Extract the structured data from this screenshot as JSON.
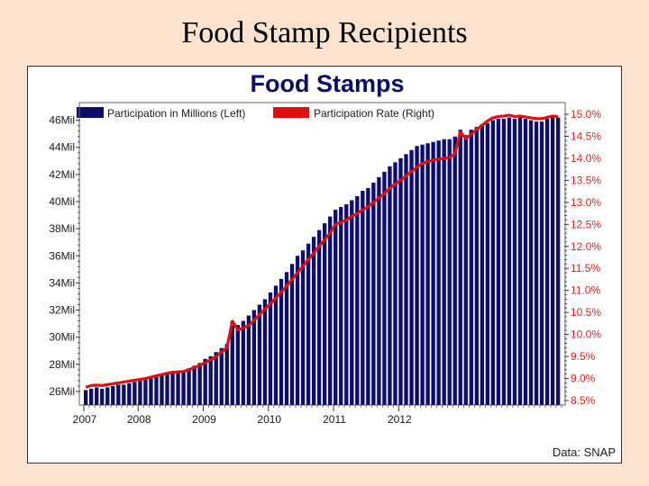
{
  "slide": {
    "title": "Food Stamp Recipients"
  },
  "colors": {
    "background": "#fbe3cf",
    "bars": "#0d0d6b",
    "rate_line": "#e01010",
    "right_axis": "#d22222"
  },
  "chart_data": {
    "type": "bar",
    "title": "Food Stamps",
    "source": "Data: SNAP",
    "legend": [
      "Participation in Millions (Left)",
      "Participation Rate (Right)"
    ],
    "legend_position": "top",
    "x_ticks": [
      "2007",
      "2008",
      "2009",
      "2010",
      "2011",
      "2012"
    ],
    "left_axis": {
      "ticks": [
        "26Mil",
        "28Mil",
        "30Mil",
        "32Mil",
        "34Mil",
        "36Mil",
        "38Mil",
        "40Mil",
        "42Mil",
        "44Mil",
        "46Mil"
      ],
      "range": [
        25,
        47.3
      ]
    },
    "right_axis": {
      "ticks": [
        "8.5%",
        "9.0%",
        "9.5%",
        "10.0%",
        "10.5%",
        "11.0%",
        "11.5%",
        "12.0%",
        "12.5%",
        "13.0%",
        "13.5%",
        "14.0%",
        "14.5%",
        "15.0%"
      ],
      "range": [
        8.5,
        15.0
      ]
    },
    "series": [
      {
        "name": "Participation in Millions (Left)",
        "type": "bar",
        "values": [
          26.1,
          26.2,
          26.3,
          26.2,
          26.3,
          26.4,
          26.5,
          26.5,
          26.6,
          26.7,
          26.8,
          26.9,
          27.0,
          27.1,
          27.3,
          27.4,
          27.5,
          27.5,
          27.5,
          27.7,
          27.9,
          28.1,
          28.4,
          28.6,
          28.9,
          29.2,
          29.5,
          31.2,
          30.9,
          31.2,
          31.6,
          32.0,
          32.4,
          32.8,
          33.3,
          33.8,
          34.3,
          34.8,
          35.4,
          36.0,
          36.4,
          36.9,
          37.4,
          37.9,
          38.4,
          38.9,
          39.4,
          39.6,
          39.8,
          40.1,
          40.4,
          40.8,
          41.0,
          41.4,
          41.8,
          42.2,
          42.6,
          42.9,
          43.2,
          43.5,
          43.8,
          44.1,
          44.2,
          44.3,
          44.4,
          44.5,
          44.6,
          44.6,
          44.8,
          45.3,
          44.9,
          45.3,
          45.5,
          45.7,
          45.8,
          46.0,
          46.1,
          46.1,
          46.2,
          46.1,
          46.2,
          46.1,
          46.0,
          45.9,
          45.9,
          46.1,
          46.3,
          46.2
        ]
      },
      {
        "name": "Participation Rate (Right)",
        "type": "line",
        "values": [
          8.8,
          8.84,
          8.85,
          8.84,
          8.86,
          8.88,
          8.9,
          8.92,
          8.94,
          8.96,
          8.98,
          9.0,
          9.03,
          9.06,
          9.09,
          9.12,
          9.14,
          9.15,
          9.16,
          9.2,
          9.25,
          9.3,
          9.36,
          9.42,
          9.5,
          9.6,
          9.7,
          10.3,
          10.1,
          10.15,
          10.2,
          10.32,
          10.45,
          10.58,
          10.7,
          10.83,
          10.96,
          11.1,
          11.25,
          11.4,
          11.55,
          11.7,
          11.85,
          12.0,
          12.15,
          12.3,
          12.5,
          12.55,
          12.6,
          12.68,
          12.75,
          12.83,
          12.9,
          13.0,
          13.1,
          13.2,
          13.32,
          13.42,
          13.5,
          13.6,
          13.7,
          13.8,
          13.88,
          13.93,
          13.96,
          13.98,
          14.0,
          14.02,
          14.1,
          14.6,
          14.45,
          14.55,
          14.65,
          14.75,
          14.85,
          14.92,
          14.95,
          14.96,
          14.98,
          14.95,
          14.96,
          14.94,
          14.92,
          14.9,
          14.9,
          14.93,
          14.96,
          14.95
        ]
      }
    ]
  }
}
